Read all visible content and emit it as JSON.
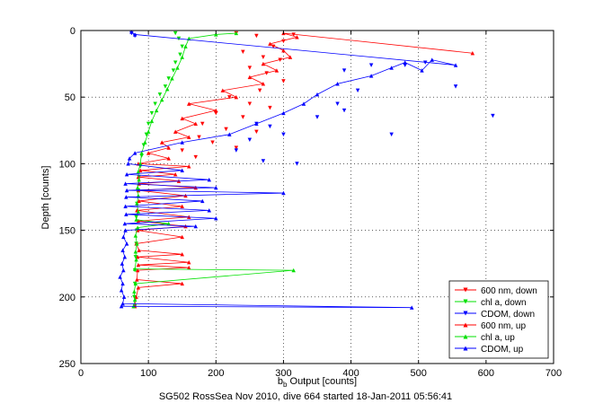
{
  "chart_data": {
    "type": "scatter",
    "title": "",
    "xlabel_main": "b",
    "xlabel_sub": "b",
    "xlabel_rest": " Output [counts]",
    "ylabel": "Depth [counts]",
    "xlim": [
      0,
      700
    ],
    "ylim": [
      250,
      0
    ],
    "y_reversed": true,
    "grid": true,
    "x_ticks": [
      0,
      100,
      200,
      300,
      400,
      500,
      600,
      700
    ],
    "y_ticks": [
      0,
      50,
      100,
      150,
      200,
      250
    ],
    "legend_position": "bottom-right",
    "caption": "SG502 RossSea Nov 2010, dive 664 started 18-Jan-2011 05:56:41",
    "colors": {
      "red": "#ff0000",
      "green": "#00e000",
      "blue": "#0000ff"
    },
    "series": [
      {
        "name": "600 nm, down",
        "color": "#ff0000",
        "marker": "triangle-down",
        "connected": false,
        "points": [
          [
            230,
            2
          ],
          [
            260,
            4
          ],
          [
            315,
            3
          ],
          [
            300,
            8
          ],
          [
            285,
            12
          ],
          [
            240,
            16
          ],
          [
            270,
            20
          ],
          [
            295,
            22
          ],
          [
            250,
            28
          ],
          [
            275,
            32
          ],
          [
            300,
            38
          ],
          [
            265,
            45
          ],
          [
            220,
            50
          ],
          [
            250,
            55
          ],
          [
            280,
            58
          ],
          [
            200,
            62
          ],
          [
            240,
            65
          ],
          [
            180,
            70
          ],
          [
            215,
            74
          ],
          [
            260,
            76
          ],
          [
            175,
            80
          ],
          [
            195,
            84
          ],
          [
            230,
            88
          ],
          [
            150,
            90
          ],
          [
            170,
            95
          ]
        ]
      },
      {
        "name": "chl a, down",
        "color": "#00e000",
        "marker": "triangle-down",
        "connected": false,
        "points": [
          [
            140,
            2
          ],
          [
            145,
            6
          ],
          [
            150,
            12
          ],
          [
            147,
            18
          ],
          [
            140,
            24
          ],
          [
            137,
            30
          ],
          [
            130,
            36
          ],
          [
            125,
            42
          ],
          [
            117,
            48
          ],
          [
            110,
            55
          ],
          [
            105,
            62
          ],
          [
            100,
            70
          ],
          [
            97,
            78
          ],
          [
            93,
            86
          ],
          [
            90,
            94
          ],
          [
            88,
            102
          ],
          [
            86,
            110
          ],
          [
            85,
            120
          ],
          [
            83,
            130
          ],
          [
            82,
            140
          ],
          [
            83,
            150
          ],
          [
            82,
            160
          ],
          [
            81,
            170
          ],
          [
            80,
            180
          ],
          [
            80,
            190
          ],
          [
            79,
            200
          ],
          [
            80,
            207
          ]
        ]
      },
      {
        "name": "CDOM, down",
        "color": "#0000ff",
        "marker": "triangle-down",
        "connected": false,
        "points": [
          [
            75,
            2
          ],
          [
            80,
            4
          ],
          [
            390,
            30
          ],
          [
            410,
            45
          ],
          [
            380,
            55
          ],
          [
            390,
            60
          ],
          [
            350,
            65
          ],
          [
            300,
            78
          ],
          [
            280,
            72
          ],
          [
            260,
            70
          ],
          [
            250,
            82
          ],
          [
            230,
            90
          ],
          [
            320,
            100
          ],
          [
            270,
            98
          ],
          [
            610,
            64
          ],
          [
            460,
            78
          ],
          [
            555,
            42
          ],
          [
            480,
            26
          ],
          [
            510,
            24
          ],
          [
            430,
            26
          ]
        ]
      },
      {
        "name": "600 nm, up",
        "color": "#ff0000",
        "marker": "triangle-up",
        "connected": true,
        "points": [
          [
            80,
            207
          ],
          [
            82,
            200
          ],
          [
            85,
            193
          ],
          [
            150,
            190
          ],
          [
            83,
            187
          ],
          [
            84,
            180
          ],
          [
            160,
            178
          ],
          [
            85,
            176
          ],
          [
            160,
            174
          ],
          [
            84,
            170
          ],
          [
            150,
            168
          ],
          [
            86,
            165
          ],
          [
            82,
            160
          ],
          [
            150,
            155
          ],
          [
            84,
            150
          ],
          [
            155,
            147
          ],
          [
            85,
            143
          ],
          [
            160,
            140
          ],
          [
            83,
            135
          ],
          [
            150,
            132
          ],
          [
            86,
            128
          ],
          [
            155,
            124
          ],
          [
            85,
            120
          ],
          [
            170,
            118
          ],
          [
            86,
            115
          ],
          [
            145,
            113
          ],
          [
            85,
            110
          ],
          [
            140,
            108
          ],
          [
            88,
            105
          ],
          [
            160,
            102
          ],
          [
            85,
            100
          ],
          [
            130,
            96
          ],
          [
            100,
            92
          ],
          [
            130,
            88
          ],
          [
            120,
            84
          ],
          [
            160,
            80
          ],
          [
            140,
            76
          ],
          [
            170,
            70
          ],
          [
            150,
            66
          ],
          [
            200,
            60
          ],
          [
            160,
            55
          ],
          [
            230,
            50
          ],
          [
            210,
            45
          ],
          [
            270,
            40
          ],
          [
            250,
            35
          ],
          [
            290,
            30
          ],
          [
            270,
            25
          ],
          [
            310,
            20
          ],
          [
            300,
            15
          ],
          [
            280,
            10
          ],
          [
            320,
            5
          ],
          [
            300,
            2
          ],
          [
            580,
            17
          ]
        ]
      },
      {
        "name": "chl a, up",
        "color": "#00e000",
        "marker": "triangle-up",
        "connected": true,
        "points": [
          [
            78,
            207
          ],
          [
            80,
            202
          ],
          [
            79,
            196
          ],
          [
            81,
            190
          ],
          [
            315,
            180
          ],
          [
            80,
            179
          ],
          [
            82,
            172
          ],
          [
            81,
            166
          ],
          [
            83,
            160
          ],
          [
            81,
            154
          ],
          [
            84,
            148
          ],
          [
            130,
            145
          ],
          [
            82,
            142
          ],
          [
            85,
            136
          ],
          [
            83,
            130
          ],
          [
            85,
            124
          ],
          [
            84,
            118
          ],
          [
            86,
            112
          ],
          [
            85,
            106
          ],
          [
            88,
            100
          ],
          [
            90,
            92
          ],
          [
            95,
            84
          ],
          [
            100,
            76
          ],
          [
            105,
            68
          ],
          [
            112,
            60
          ],
          [
            120,
            52
          ],
          [
            128,
            44
          ],
          [
            135,
            36
          ],
          [
            143,
            28
          ],
          [
            150,
            20
          ],
          [
            155,
            12
          ],
          [
            160,
            6
          ],
          [
            200,
            3
          ],
          [
            230,
            2
          ]
        ]
      },
      {
        "name": "CDOM, up",
        "color": "#0000ff",
        "marker": "triangle-up",
        "connected": true,
        "points": [
          [
            60,
            207
          ],
          [
            490,
            208
          ],
          [
            62,
            205
          ],
          [
            64,
            200
          ],
          [
            60,
            195
          ],
          [
            62,
            190
          ],
          [
            58,
            185
          ],
          [
            63,
            180
          ],
          [
            61,
            175
          ],
          [
            65,
            170
          ],
          [
            62,
            165
          ],
          [
            68,
            160
          ],
          [
            63,
            155
          ],
          [
            66,
            150
          ],
          [
            170,
            147
          ],
          [
            65,
            145
          ],
          [
            200,
            141
          ],
          [
            67,
            138
          ],
          [
            190,
            135
          ],
          [
            66,
            132
          ],
          [
            180,
            128
          ],
          [
            67,
            125
          ],
          [
            300,
            122
          ],
          [
            68,
            120
          ],
          [
            200,
            118
          ],
          [
            66,
            115
          ],
          [
            190,
            112
          ],
          [
            68,
            108
          ],
          [
            150,
            105
          ],
          [
            70,
            100
          ],
          [
            72,
            96
          ],
          [
            80,
            92
          ],
          [
            150,
            84
          ],
          [
            220,
            78
          ],
          [
            260,
            70
          ],
          [
            300,
            62
          ],
          [
            330,
            55
          ],
          [
            350,
            48
          ],
          [
            380,
            40
          ],
          [
            430,
            34
          ],
          [
            460,
            28
          ],
          [
            480,
            24
          ],
          [
            505,
            30
          ],
          [
            520,
            22
          ],
          [
            555,
            26
          ],
          [
            80,
            3
          ],
          [
            75,
            1
          ]
        ]
      }
    ]
  }
}
